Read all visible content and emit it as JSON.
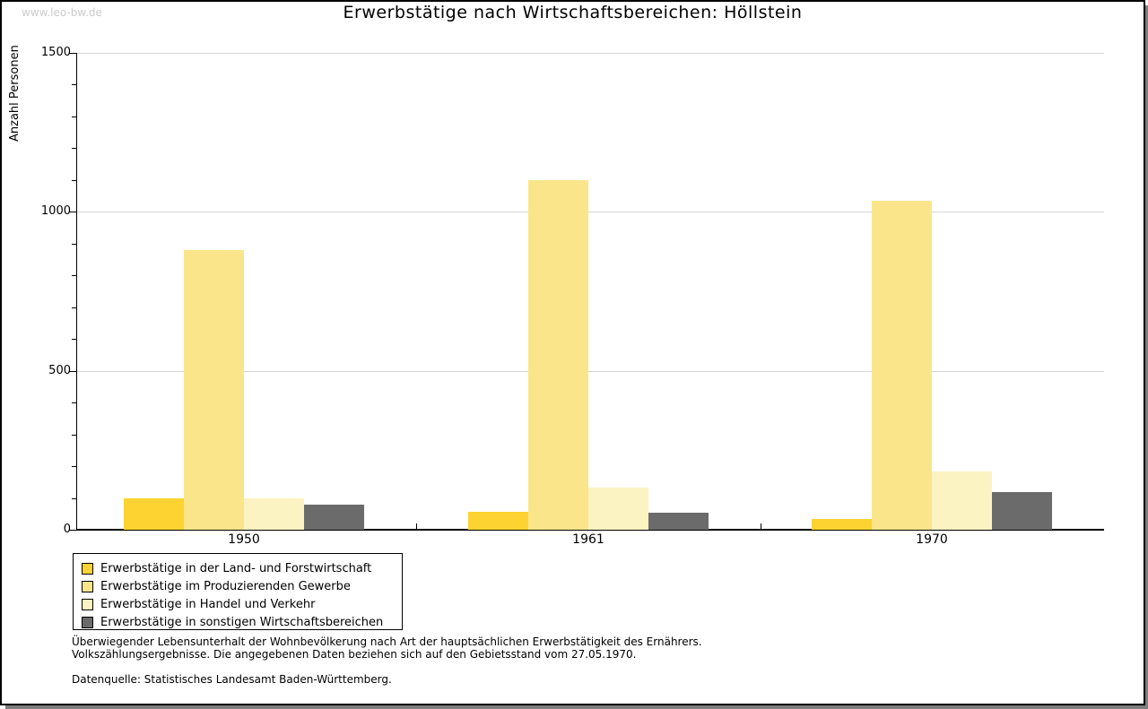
{
  "watermark": "www.leo-bw.de",
  "title": "Erwerbstätige nach Wirtschaftsbereichen: Höllstein",
  "y_axis": {
    "label": "Anzahl Personen",
    "min": 0,
    "max": 1500,
    "major_step": 500,
    "minor_step": 100,
    "tick_labels": [
      "0",
      "500",
      "1000",
      "1500"
    ]
  },
  "chart_data": {
    "type": "bar",
    "title": "Erwerbstätige nach Wirtschaftsbereichen: Höllstein",
    "categories": [
      "1950",
      "1961",
      "1970"
    ],
    "series": [
      {
        "name": "Erwerbstätige in der Land- und Forstwirtschaft",
        "color": "#FCD330",
        "values": [
          100,
          57,
          35
        ]
      },
      {
        "name": "Erwerbstätige im Produzierenden Gewerbe",
        "color": "#FBE58A",
        "values": [
          880,
          1100,
          1035
        ]
      },
      {
        "name": "Erwerbstätige in Handel und Verkehr",
        "color": "#FCF3C3",
        "values": [
          100,
          133,
          183
        ]
      },
      {
        "name": "Erwerbstätige in sonstigen Wirtschaftsbereichen",
        "color": "#6B6B6B",
        "values": [
          80,
          53,
          118
        ]
      }
    ],
    "xlabel": "",
    "ylabel": "Anzahl Personen",
    "ylim": [
      0,
      1500
    ],
    "grid": true,
    "legend_position": "bottom-left"
  },
  "footer": {
    "line1": "Überwiegender Lebensunterhalt der Wohnbevölkerung nach Art der hauptsächlichen Erwerbstätigkeit des Ernährers.",
    "line2": "Volkszählungsergebnisse. Die angegebenen Daten beziehen sich auf den Gebietsstand vom 27.05.1970.",
    "source": "Datenquelle: Statistisches Landesamt Baden-Württemberg."
  },
  "colors": {
    "background": "#FFFFFF",
    "grid": "#D6D6D6",
    "axis": "#000000",
    "watermark": "#CCCCCC",
    "shadow": "#7F7F7F"
  }
}
